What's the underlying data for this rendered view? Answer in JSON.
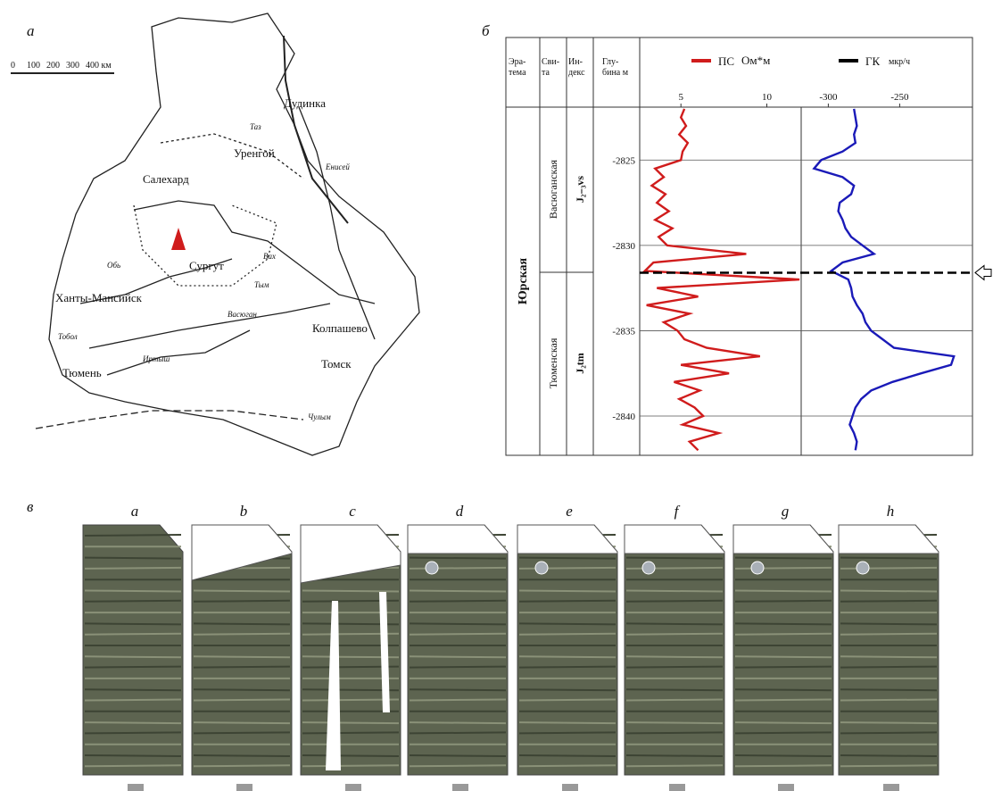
{
  "map": {
    "label": "а",
    "scale": [
      "0",
      "100",
      "200",
      "300",
      "400 км"
    ],
    "places": [
      "Дудинка",
      "Салехард",
      "Уренгой",
      "Сургут",
      "Ханты-Мансийск",
      "Колпашево",
      "Томск",
      "Тюмень"
    ],
    "rivers": [
      "Таз",
      "Енисей",
      "Обь",
      "Вах",
      "Тым",
      "Васюган",
      "Иртыш",
      "Тобол",
      "Чулым"
    ]
  },
  "log": {
    "label": "б",
    "type": "line",
    "header": {
      "era": "Эра-тема",
      "suite": "Сви-та",
      "index": "Ин-декс",
      "depth": "Глу-бина м"
    },
    "era": "Юрская",
    "suites": [
      {
        "name": "Васюганская",
        "index": "J₂₋₃vs"
      },
      {
        "name": "Тюменская",
        "index": "J₂tm"
      }
    ],
    "ylim": [
      -2821.9,
      -2842.3
    ],
    "yticks": [
      -2825,
      -2830,
      -2835,
      -2840
    ],
    "depth": [
      -2822,
      -2822.5,
      -2823,
      -2823.5,
      -2824,
      -2824.5,
      -2825,
      -2825.5,
      -2826,
      -2826.5,
      -2827,
      -2827.5,
      -2828,
      -2828.5,
      -2829,
      -2829.5,
      -2830,
      -2830.5,
      -2831,
      -2831.5,
      -2832,
      -2832.5,
      -2833,
      -2833.5,
      -2834,
      -2834.5,
      -2835,
      -2835.5,
      -2836,
      -2836.5,
      -2837,
      -2837.5,
      -2838,
      -2838.5,
      -2839,
      -2839.5,
      -2840,
      -2840.5,
      -2841,
      -2841.5,
      -2842
    ],
    "boundary": -2831.6,
    "series": [
      {
        "name": "ПС",
        "unit": "Ом*м",
        "color": "#d01c1c",
        "xlim": [
          2.6,
          12
        ],
        "xticks": [
          5,
          10
        ],
        "values": [
          5.2,
          5.0,
          5.3,
          4.9,
          5.4,
          5.1,
          5.0,
          3.5,
          4.0,
          3.3,
          4.1,
          3.6,
          4.3,
          3.5,
          4.5,
          3.7,
          4.2,
          8.8,
          3.4,
          2.9,
          11.9,
          3.6,
          6.0,
          3.0,
          5.5,
          4.0,
          4.8,
          5.2,
          6.5,
          9.6,
          5.0,
          7.8,
          4.6,
          6.1,
          4.9,
          5.8,
          6.3,
          5.1,
          7.2,
          5.5,
          6.0
        ]
      },
      {
        "name": "ГК",
        "unit": "мкр/ч",
        "color": "#1a1ab8",
        "xlim": [
          -319,
          -199
        ],
        "xticks": [
          -300,
          -250
        ],
        "values": [
          -282,
          -281,
          -280,
          -282,
          -281,
          -290,
          -305,
          -310,
          -290,
          -282,
          -284,
          -292,
          -293,
          -290,
          -288,
          -284,
          -276,
          -268,
          -290,
          -298,
          -286,
          -284,
          -283,
          -280,
          -276,
          -274,
          -270,
          -262,
          -254,
          -212,
          -214,
          -235,
          -255,
          -270,
          -277,
          -281,
          -283,
          -285,
          -282,
          -280,
          -281
        ]
      }
    ]
  },
  "cores": {
    "label": "в",
    "panels": [
      "a",
      "b",
      "c",
      "d",
      "e",
      "f",
      "g",
      "h"
    ]
  }
}
